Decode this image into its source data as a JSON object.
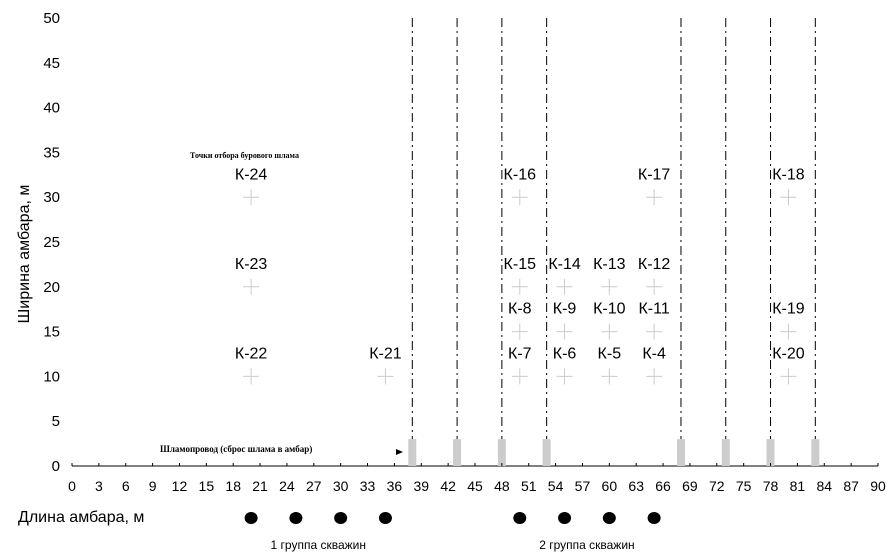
{
  "chart_data": {
    "type": "scatter",
    "title": "",
    "xlabel": "Длина амбара, м",
    "ylabel": "Ширина амбара, м",
    "xlim": [
      0,
      90
    ],
    "ylim": [
      0,
      50
    ],
    "xticks": [
      0,
      3,
      6,
      9,
      12,
      15,
      18,
      21,
      24,
      27,
      30,
      33,
      36,
      39,
      42,
      45,
      48,
      51,
      54,
      57,
      60,
      63,
      66,
      69,
      72,
      75,
      78,
      81,
      84,
      87,
      90
    ],
    "yticks": [
      0,
      5,
      10,
      15,
      20,
      25,
      30,
      35,
      40,
      45,
      50
    ],
    "grid": false,
    "sampling_points_label": "Точки отбора бурового шлама",
    "pipeline_label": "Шламопровод (сброс шлама в амбар)",
    "sampling_points": [
      {
        "name": "К-24",
        "x": 20,
        "y": 30
      },
      {
        "name": "К-23",
        "x": 20,
        "y": 20
      },
      {
        "name": "К-22",
        "x": 20,
        "y": 10
      },
      {
        "name": "К-21",
        "x": 35,
        "y": 10
      },
      {
        "name": "К-16",
        "x": 50,
        "y": 30
      },
      {
        "name": "К-15",
        "x": 50,
        "y": 20
      },
      {
        "name": "К-8",
        "x": 50,
        "y": 15
      },
      {
        "name": "К-7",
        "x": 50,
        "y": 10
      },
      {
        "name": "К-14",
        "x": 55,
        "y": 20
      },
      {
        "name": "К-9",
        "x": 55,
        "y": 15
      },
      {
        "name": "К-6",
        "x": 55,
        "y": 10
      },
      {
        "name": "К-13",
        "x": 60,
        "y": 20
      },
      {
        "name": "К-10",
        "x": 60,
        "y": 15
      },
      {
        "name": "К-5",
        "x": 60,
        "y": 10
      },
      {
        "name": "К-17",
        "x": 65,
        "y": 30
      },
      {
        "name": "К-12",
        "x": 65,
        "y": 20
      },
      {
        "name": "К-11",
        "x": 65,
        "y": 15
      },
      {
        "name": "К-4",
        "x": 65,
        "y": 10
      },
      {
        "name": "К-18",
        "x": 80,
        "y": 30
      },
      {
        "name": "К-19",
        "x": 80,
        "y": 15
      },
      {
        "name": "К-20",
        "x": 80,
        "y": 10
      }
    ],
    "pipeline_discharges_x": [
      38,
      43,
      48,
      53,
      68,
      73,
      78,
      83
    ],
    "well_groups": [
      {
        "label": "1 группа скважин",
        "wells_x": [
          20,
          25,
          30,
          35
        ]
      },
      {
        "label": "2 группа скважин",
        "wells_x": [
          50,
          55,
          60,
          65
        ]
      }
    ]
  }
}
